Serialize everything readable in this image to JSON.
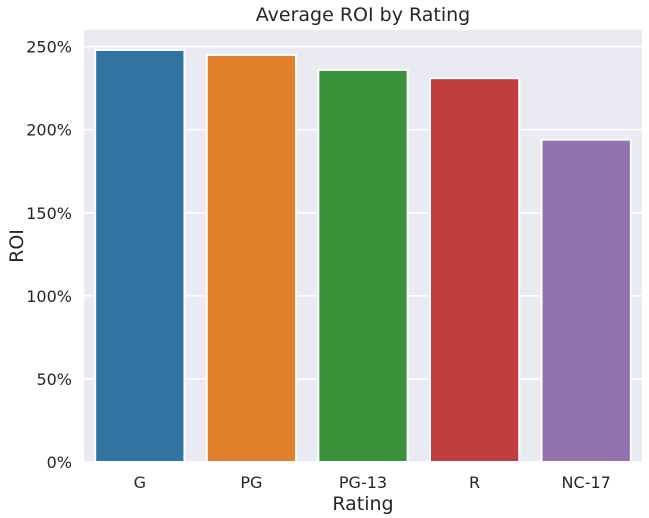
{
  "chart_data": {
    "type": "bar",
    "title": "Average ROI by Rating",
    "xlabel": "Rating",
    "ylabel": "ROI",
    "categories": [
      "G",
      "PG",
      "PG-13",
      "R",
      "NC-17"
    ],
    "values": [
      2.48,
      2.45,
      2.36,
      2.31,
      1.94
    ],
    "ylim": [
      0,
      2.6
    ],
    "yticks": [
      0,
      0.5,
      1.0,
      1.5,
      2.0,
      2.5
    ],
    "ytick_labels": [
      "0%",
      "50%",
      "100%",
      "150%",
      "200%",
      "250%"
    ],
    "colors": [
      "#3274a1",
      "#e1812c",
      "#3a923a",
      "#c03d3e",
      "#9372b2"
    ],
    "background": "#eaeaf2",
    "grid": true,
    "legend": "none"
  }
}
